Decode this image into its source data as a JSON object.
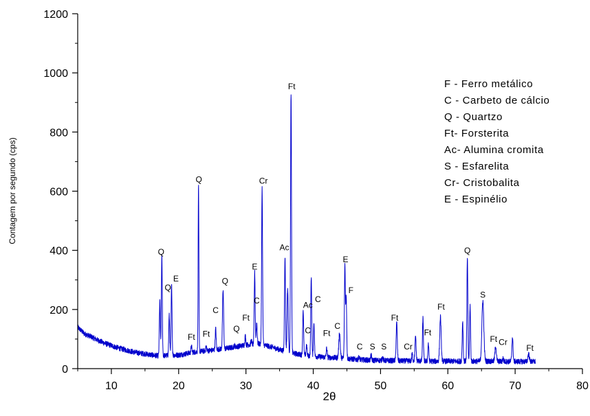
{
  "chart_data": {
    "type": "line",
    "xlabel": "2θ",
    "ylabel": "Contagem por segundo (cps)",
    "xlim": [
      5,
      80
    ],
    "ylim": [
      0,
      1200
    ],
    "xticks": [
      10,
      20,
      30,
      40,
      50,
      60,
      70,
      80
    ],
    "yticks": [
      0,
      200,
      400,
      600,
      800,
      1000,
      1200
    ],
    "grid": false,
    "line_color": "#0000cc",
    "background": [
      [
        5,
        140
      ],
      [
        6,
        118
      ],
      [
        7,
        108
      ],
      [
        8,
        96
      ],
      [
        9,
        86
      ],
      [
        10,
        78
      ],
      [
        11,
        70
      ],
      [
        12,
        64
      ],
      [
        13,
        58
      ],
      [
        14,
        53
      ],
      [
        15,
        50
      ],
      [
        16,
        46
      ],
      [
        17,
        43
      ],
      [
        18,
        44
      ],
      [
        19,
        45
      ],
      [
        20,
        46
      ],
      [
        21,
        50
      ],
      [
        22,
        55
      ],
      [
        23,
        58
      ],
      [
        24,
        60
      ],
      [
        25,
        62
      ],
      [
        26,
        66
      ],
      [
        27,
        68
      ],
      [
        28,
        72
      ],
      [
        29,
        76
      ],
      [
        30,
        80
      ],
      [
        31,
        82
      ],
      [
        32,
        84
      ],
      [
        33,
        78
      ],
      [
        34,
        72
      ],
      [
        35,
        64
      ],
      [
        36,
        58
      ],
      [
        37,
        52
      ],
      [
        38,
        48
      ],
      [
        39,
        44
      ],
      [
        40,
        42
      ],
      [
        41,
        40
      ],
      [
        42,
        38
      ],
      [
        43,
        37
      ],
      [
        44,
        36
      ],
      [
        45,
        34
      ],
      [
        46,
        32
      ],
      [
        47,
        30
      ],
      [
        48,
        29
      ],
      [
        49,
        28
      ],
      [
        50,
        28
      ],
      [
        51,
        27
      ],
      [
        52,
        27
      ],
      [
        53,
        26
      ],
      [
        54,
        26
      ],
      [
        55,
        26
      ],
      [
        56,
        26
      ],
      [
        57,
        25
      ],
      [
        58,
        25
      ],
      [
        59,
        25
      ],
      [
        60,
        25
      ],
      [
        61,
        25
      ],
      [
        62,
        25
      ],
      [
        63,
        25
      ],
      [
        64,
        25
      ],
      [
        65,
        25
      ],
      [
        66,
        25
      ],
      [
        67,
        25
      ],
      [
        68,
        24
      ],
      [
        69,
        24
      ],
      [
        70,
        24
      ],
      [
        71,
        24
      ],
      [
        72,
        24
      ],
      [
        73,
        24
      ]
    ],
    "peaks": [
      [
        17.2,
        230,
        0.1
      ],
      [
        17.5,
        380,
        0.1
      ],
      [
        18.6,
        180,
        0.1
      ],
      [
        18.95,
        280,
        0.1
      ],
      [
        21.9,
        75,
        0.1
      ],
      [
        22.95,
        620,
        0.08
      ],
      [
        24.1,
        75,
        0.1
      ],
      [
        25.5,
        135,
        0.1
      ],
      [
        26.6,
        265,
        0.12
      ],
      [
        28.3,
        78,
        0.1
      ],
      [
        29.9,
        110,
        0.1
      ],
      [
        30.8,
        95,
        0.1
      ],
      [
        31.3,
        325,
        0.1
      ],
      [
        31.6,
        155,
        0.1
      ],
      [
        32.4,
        612,
        0.1
      ],
      [
        35.8,
        380,
        0.1
      ],
      [
        36.2,
        270,
        0.12
      ],
      [
        36.7,
        935,
        0.1
      ],
      [
        38.5,
        200,
        0.1
      ],
      [
        39.0,
        80,
        0.1
      ],
      [
        39.7,
        310,
        0.1
      ],
      [
        40.1,
        155,
        0.1
      ],
      [
        42.0,
        70,
        0.1
      ],
      [
        43.9,
        120,
        0.15
      ],
      [
        44.7,
        350,
        0.1
      ],
      [
        44.9,
        240,
        0.1
      ],
      [
        46.8,
        40,
        0.1
      ],
      [
        48.6,
        45,
        0.1
      ],
      [
        50.3,
        40,
        0.1
      ],
      [
        52.4,
        155,
        0.12
      ],
      [
        54.7,
        50,
        0.1
      ],
      [
        55.2,
        105,
        0.12
      ],
      [
        56.3,
        170,
        0.1
      ],
      [
        57.1,
        85,
        0.1
      ],
      [
        58.9,
        175,
        0.15
      ],
      [
        62.2,
        160,
        0.1
      ],
      [
        62.9,
        375,
        0.1
      ],
      [
        63.3,
        215,
        0.1
      ],
      [
        65.2,
        230,
        0.2
      ],
      [
        67.1,
        75,
        0.15
      ],
      [
        68.2,
        35,
        0.1
      ],
      [
        69.6,
        105,
        0.12
      ],
      [
        72.0,
        50,
        0.15
      ]
    ],
    "annotations": [
      {
        "text": "Q",
        "x": 17.4,
        "y": 385
      },
      {
        "text": "Q",
        "x": 18.4,
        "y": 265
      },
      {
        "text": "E",
        "x": 19.6,
        "y": 295
      },
      {
        "text": "Ft",
        "x": 21.9,
        "y": 98
      },
      {
        "text": "Q",
        "x": 23.0,
        "y": 630
      },
      {
        "text": "Ft",
        "x": 24.1,
        "y": 108
      },
      {
        "text": "C",
        "x": 25.5,
        "y": 188
      },
      {
        "text": "Q",
        "x": 26.9,
        "y": 287
      },
      {
        "text": "Q",
        "x": 28.6,
        "y": 125
      },
      {
        "text": "Ft",
        "x": 30.0,
        "y": 162
      },
      {
        "text": "E",
        "x": 31.3,
        "y": 335
      },
      {
        "text": "C",
        "x": 31.6,
        "y": 220
      },
      {
        "text": "Cr",
        "x": 32.6,
        "y": 625
      },
      {
        "text": "Ac",
        "x": 35.7,
        "y": 400
      },
      {
        "text": "Ft",
        "x": 36.8,
        "y": 945
      },
      {
        "text": "Ac",
        "x": 39.2,
        "y": 205
      },
      {
        "text": "C",
        "x": 40.7,
        "y": 225
      },
      {
        "text": "C",
        "x": 39.2,
        "y": 120
      },
      {
        "text": "Ft",
        "x": 42.0,
        "y": 110
      },
      {
        "text": "C",
        "x": 43.6,
        "y": 135
      },
      {
        "text": "E",
        "x": 44.8,
        "y": 360
      },
      {
        "text": "F",
        "x": 45.6,
        "y": 255
      },
      {
        "text": "C",
        "x": 46.9,
        "y": 65
      },
      {
        "text": "S",
        "x": 48.8,
        "y": 65
      },
      {
        "text": "S",
        "x": 50.5,
        "y": 65
      },
      {
        "text": "Ft",
        "x": 52.1,
        "y": 163
      },
      {
        "text": "Cr",
        "x": 54.1,
        "y": 65
      },
      {
        "text": "Ft",
        "x": 57.0,
        "y": 112
      },
      {
        "text": "Ft",
        "x": 59.0,
        "y": 200
      },
      {
        "text": "Q",
        "x": 62.9,
        "y": 390
      },
      {
        "text": "S",
        "x": 65.2,
        "y": 240
      },
      {
        "text": "Ft",
        "x": 66.8,
        "y": 90
      },
      {
        "text": "Cr",
        "x": 68.2,
        "y": 80
      },
      {
        "text": "Ft",
        "x": 72.2,
        "y": 60
      }
    ],
    "legend": {
      "position": "top-right",
      "items": [
        "F - Ferro metálico",
        "C - Carbeto de cálcio",
        "Q - Quartzo",
        "Ft- Forsterita",
        "Ac- Alumina cromita",
        "S - Esfarelita",
        "Cr- Cristobalita",
        "E - Espinélio"
      ]
    }
  }
}
